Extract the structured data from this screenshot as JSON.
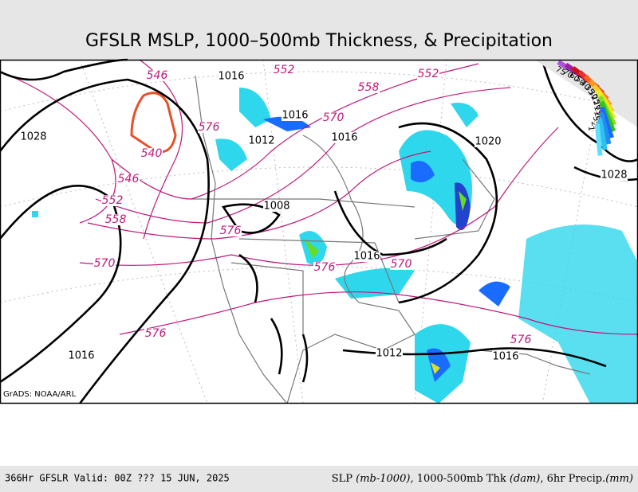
{
  "header": {
    "title": "GFSLR MSLP, 1000–500mb Thickness, & Precipitation"
  },
  "map": {
    "credit": "GrADS: NOAA/ARL",
    "pressure_labels": [
      1016,
      1028,
      1016,
      1012,
      1016,
      1020,
      1028,
      1008,
      1016,
      1012,
      1016,
      1016
    ],
    "thickness_labels": [
      546,
      540,
      546,
      552,
      558,
      570,
      576,
      552,
      558,
      552,
      570,
      576,
      576,
      576,
      570,
      576
    ],
    "precip_legend": [
      "75",
      "70",
      "60",
      "50",
      "40",
      "35",
      "30",
      "25",
      "20",
      "15",
      "10",
      "5",
      "2",
      "1"
    ]
  },
  "footer": {
    "left": "366Hr GFSLR Valid: 00Z ??? 15 JUN, 2025",
    "right": [
      "SLP ",
      "(mb-1000)",
      ", 1000-500mb Thk ",
      "(dam)",
      ", 6hr Precip.",
      "(mm)"
    ]
  }
}
